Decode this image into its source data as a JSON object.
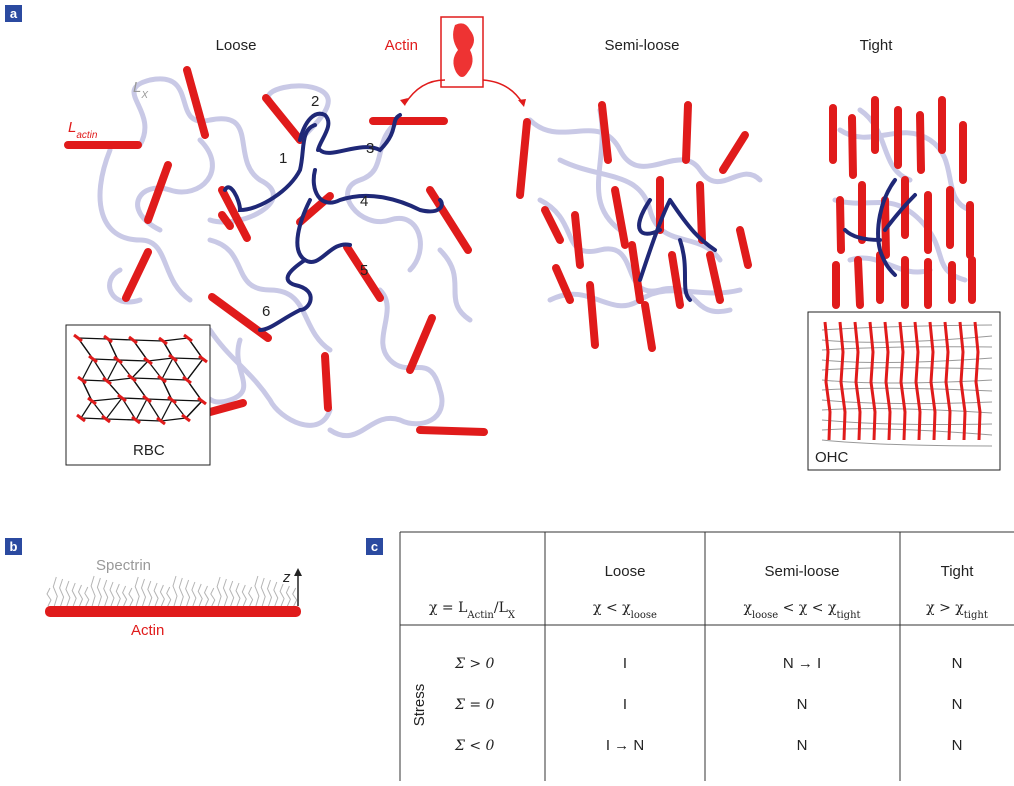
{
  "panels": [
    "a",
    "b",
    "c"
  ],
  "panel_a": {
    "headings": [
      "Loose",
      "Semi-loose",
      "Tight"
    ],
    "actin_label": "Actin",
    "l_x": [
      {
        "text": "L"
      },
      {
        "text": "X",
        "sub": true
      }
    ],
    "l_actin": [
      {
        "text": "L"
      },
      {
        "text": "actin",
        "sub": true
      }
    ],
    "chain_numbers": [
      "1",
      "2",
      "3",
      "4",
      "5",
      "6"
    ],
    "insets": [
      "RBC",
      "OHC"
    ]
  },
  "panel_b": {
    "spectrin": "Spectrin",
    "actin": "Actin",
    "axis": "z"
  },
  "table": {
    "header": [
      "Loose",
      "Semi-loose",
      "Tight"
    ],
    "formulas": [
      [
        {
          "text": "χ = L"
        },
        {
          "text": "Actin",
          "sub": true
        },
        {
          "text": "/L"
        },
        {
          "text": "X",
          "sub": true
        }
      ],
      [
        {
          "text": "χ < χ"
        },
        {
          "text": "loose",
          "sub": true
        }
      ],
      [
        {
          "text": "χ"
        },
        {
          "text": "loose",
          "sub": true
        },
        {
          "text": " < χ < χ"
        },
        {
          "text": "tight",
          "sub": true
        }
      ],
      [
        {
          "text": "χ > χ"
        },
        {
          "text": "tight",
          "sub": true
        }
      ]
    ],
    "row_label": "Stress",
    "rows": [
      {
        "stress": "Σ > 0",
        "cells": [
          "I",
          "N → I",
          "N"
        ]
      },
      {
        "stress": "Σ = 0",
        "cells": [
          "I",
          "N",
          "N"
        ]
      },
      {
        "stress": "Σ < 0",
        "cells": [
          "I → N",
          "N",
          "N"
        ]
      }
    ]
  }
}
